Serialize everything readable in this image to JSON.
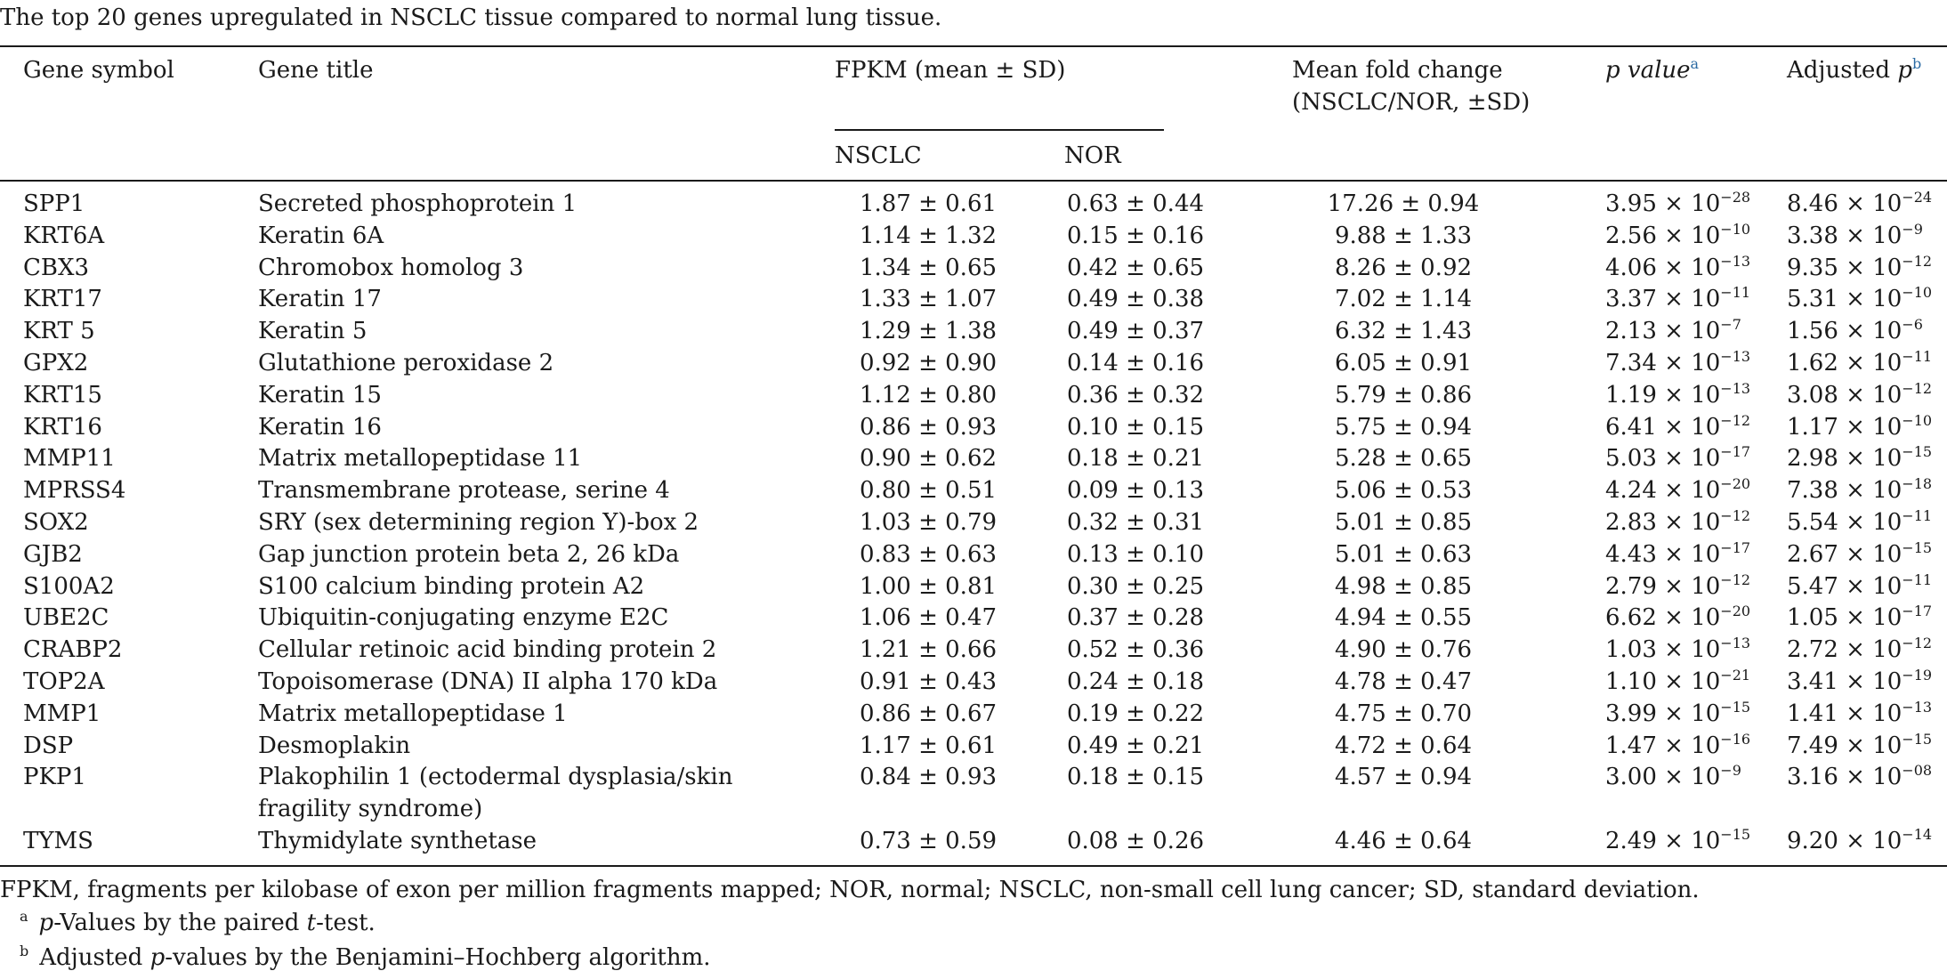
{
  "caption": "The top 20 genes upregulated in NSCLC tissue compared to normal lung tissue.",
  "header": {
    "gene_symbol": "Gene symbol",
    "gene_title": "Gene title",
    "fpkm": "FPKM (mean ± SD)",
    "nsclc": "NSCLC",
    "nor": "NOR",
    "fold_line1": "Mean fold change",
    "fold_line2": "(NSCLC/NOR, ±SD)",
    "p_value": "p value",
    "p_value_mark": "a",
    "adjusted": "Adjusted ",
    "adjusted_p": "p",
    "adjusted_mark": "b"
  },
  "rows": [
    {
      "symbol": "SPP1",
      "title": "Secreted phosphoprotein 1",
      "nsclc": "1.87 ± 0.61",
      "nor": "0.63 ± 0.44",
      "fold": "17.26 ± 0.94",
      "p_base": "3.95 × 10",
      "p_exp": "−28",
      "adj_base": "8.46 × 10",
      "adj_exp": "−24"
    },
    {
      "symbol": "KRT6A",
      "title": "Keratin 6A",
      "nsclc": "1.14 ± 1.32",
      "nor": "0.15 ± 0.16",
      "fold": "9.88 ± 1.33",
      "p_base": "2.56 × 10",
      "p_exp": "−10",
      "adj_base": "3.38 × 10",
      "adj_exp": "−9"
    },
    {
      "symbol": "CBX3",
      "title": "Chromobox homolog 3",
      "nsclc": "1.34 ± 0.65",
      "nor": "0.42 ± 0.65",
      "fold": "8.26 ± 0.92",
      "p_base": "4.06 × 10",
      "p_exp": "−13",
      "adj_base": "9.35 × 10",
      "adj_exp": "−12"
    },
    {
      "symbol": "KRT17",
      "title": "Keratin 17",
      "nsclc": "1.33 ± 1.07",
      "nor": "0.49 ± 0.38",
      "fold": "7.02 ± 1.14",
      "p_base": "3.37 × 10",
      "p_exp": "−11",
      "adj_base": "5.31 × 10",
      "adj_exp": "−10"
    },
    {
      "symbol": "KRT 5",
      "title": "Keratin 5",
      "nsclc": "1.29 ± 1.38",
      "nor": "0.49 ± 0.37",
      "fold": "6.32 ± 1.43",
      "p_base": "2.13 × 10",
      "p_exp": "−7",
      "adj_base": "1.56 × 10",
      "adj_exp": "−6"
    },
    {
      "symbol": "GPX2",
      "title": "Glutathione peroxidase 2",
      "nsclc": "0.92 ± 0.90",
      "nor": "0.14 ± 0.16",
      "fold": "6.05 ± 0.91",
      "p_base": "7.34 × 10",
      "p_exp": "−13",
      "adj_base": "1.62 × 10",
      "adj_exp": "−11"
    },
    {
      "symbol": "KRT15",
      "title": "Keratin 15",
      "nsclc": "1.12 ± 0.80",
      "nor": "0.36 ± 0.32",
      "fold": "5.79 ± 0.86",
      "p_base": "1.19 × 10",
      "p_exp": "−13",
      "adj_base": "3.08 × 10",
      "adj_exp": "−12"
    },
    {
      "symbol": "KRT16",
      "title": "Keratin 16",
      "nsclc": "0.86 ± 0.93",
      "nor": "0.10 ± 0.15",
      "fold": "5.75 ± 0.94",
      "p_base": "6.41 × 10",
      "p_exp": "−12",
      "adj_base": "1.17 × 10",
      "adj_exp": "−10"
    },
    {
      "symbol": "MMP11",
      "title": "Matrix metallopeptidase 11",
      "nsclc": "0.90 ± 0.62",
      "nor": "0.18 ± 0.21",
      "fold": "5.28 ± 0.65",
      "p_base": "5.03 × 10",
      "p_exp": "−17",
      "adj_base": "2.98 × 10",
      "adj_exp": "−15"
    },
    {
      "symbol": "MPRSS4",
      "title": "Transmembrane protease, serine 4",
      "nsclc": "0.80 ± 0.51",
      "nor": "0.09 ± 0.13",
      "fold": "5.06 ± 0.53",
      "p_base": "4.24 × 10",
      "p_exp": "−20",
      "adj_base": "7.38 × 10",
      "adj_exp": "−18"
    },
    {
      "symbol": "SOX2",
      "title": "SRY (sex determining region Y)-box 2",
      "nsclc": "1.03 ± 0.79",
      "nor": "0.32 ± 0.31",
      "fold": "5.01 ± 0.85",
      "p_base": "2.83 × 10",
      "p_exp": "−12",
      "adj_base": "5.54 × 10",
      "adj_exp": "−11"
    },
    {
      "symbol": "GJB2",
      "title": "Gap junction protein beta 2, 26 kDa",
      "nsclc": "0.83 ± 0.63",
      "nor": "0.13 ± 0.10",
      "fold": "5.01 ± 0.63",
      "p_base": "4.43 × 10",
      "p_exp": "−17",
      "adj_base": "2.67 × 10",
      "adj_exp": "−15"
    },
    {
      "symbol": "S100A2",
      "title": "S100 calcium binding protein A2",
      "nsclc": "1.00 ± 0.81",
      "nor": "0.30 ± 0.25",
      "fold": "4.98 ± 0.85",
      "p_base": "2.79 × 10",
      "p_exp": "−12",
      "adj_base": "5.47 × 10",
      "adj_exp": "−11"
    },
    {
      "symbol": "UBE2C",
      "title": "Ubiquitin-conjugating enzyme E2C",
      "nsclc": "1.06 ± 0.47",
      "nor": "0.37 ± 0.28",
      "fold": "4.94 ± 0.55",
      "p_base": "6.62 × 10",
      "p_exp": "−20",
      "adj_base": "1.05 × 10",
      "adj_exp": "−17"
    },
    {
      "symbol": "CRABP2",
      "title": "Cellular retinoic acid binding protein 2",
      "nsclc": "1.21 ± 0.66",
      "nor": "0.52 ± 0.36",
      "fold": "4.90 ± 0.76",
      "p_base": "1.03 × 10",
      "p_exp": "−13",
      "adj_base": "2.72 × 10",
      "adj_exp": "−12"
    },
    {
      "symbol": "TOP2A",
      "title": "Topoisomerase (DNA) II alpha 170 kDa",
      "nsclc": "0.91 ± 0.43",
      "nor": "0.24 ± 0.18",
      "fold": "4.78 ± 0.47",
      "p_base": "1.10 × 10",
      "p_exp": "−21",
      "adj_base": "3.41 × 10",
      "adj_exp": "−19"
    },
    {
      "symbol": "MMP1",
      "title": "Matrix metallopeptidase 1",
      "nsclc": "0.86 ± 0.67",
      "nor": "0.19 ± 0.22",
      "fold": "4.75 ± 0.70",
      "p_base": "3.99 × 10",
      "p_exp": "−15",
      "adj_base": "1.41 × 10",
      "adj_exp": "−13"
    },
    {
      "symbol": "DSP",
      "title": "Desmoplakin",
      "nsclc": "1.17 ± 0.61",
      "nor": "0.49 ± 0.21",
      "fold": "4.72 ± 0.64",
      "p_base": "1.47 × 10",
      "p_exp": "−16",
      "adj_base": "7.49 × 10",
      "adj_exp": "−15"
    },
    {
      "symbol": "PKP1",
      "title": "Plakophilin 1 (ectodermal dysplasia/skin fragility syndrome)",
      "nsclc": "0.84 ± 0.93",
      "nor": "0.18 ± 0.15",
      "fold": "4.57 ± 0.94",
      "p_base": "3.00 × 10",
      "p_exp": "−9",
      "adj_base": "3.16 × 10",
      "adj_exp": "−08",
      "tall": true
    },
    {
      "symbol": "TYMS",
      "title": "Thymidylate synthetase",
      "nsclc": "0.73 ± 0.59",
      "nor": "0.08 ± 0.26",
      "fold": "4.46 ± 0.64",
      "p_base": "2.49 × 10",
      "p_exp": "−15",
      "adj_base": "9.20 × 10",
      "adj_exp": "−14"
    }
  ],
  "footnotes": {
    "abbrev": "FPKM, fragments per kilobase of exon per million fragments mapped; NOR, normal; NSCLC, non-small cell lung cancer; SD, standard deviation.",
    "a_mark": "a",
    "a_p": "p",
    "a_text1": "-Values by the paired ",
    "a_t": "t",
    "a_text2": "-test.",
    "b_mark": "b",
    "b_text1": "Adjusted ",
    "b_p": "p",
    "b_text2": "-values by the Benjamini–Hochberg algorithm."
  }
}
